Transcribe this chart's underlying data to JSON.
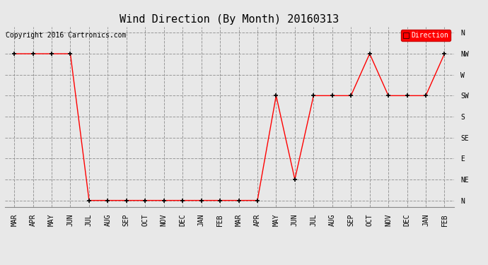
{
  "title": "Wind Direction (By Month) 20160313",
  "copyright": "Copyright 2016 Cartronics.com",
  "legend_label": "Direction",
  "legend_color": "#ff0000",
  "legend_text_color": "#ffffff",
  "x_labels": [
    "MAR",
    "APR",
    "MAY",
    "JUN",
    "JUL",
    "AUG",
    "SEP",
    "OCT",
    "NOV",
    "DEC",
    "JAN",
    "FEB",
    "MAR",
    "APR",
    "MAY",
    "JUN",
    "JUL",
    "AUG",
    "SEP",
    "OCT",
    "NOV",
    "DEC",
    "JAN",
    "FEB"
  ],
  "y_labels": [
    "N",
    "NE",
    "E",
    "SE",
    "S",
    "SW",
    "W",
    "NW",
    "N"
  ],
  "y_values": [
    0,
    1,
    2,
    3,
    4,
    5,
    6,
    7,
    8
  ],
  "data_values": [
    7,
    7,
    7,
    7,
    0,
    0,
    0,
    0,
    0,
    0,
    0,
    0,
    0,
    0,
    5,
    1,
    5,
    5,
    5,
    7,
    5,
    5,
    5,
    7
  ],
  "line_color": "#ff0000",
  "marker_color": "#000000",
  "marker_size": 5,
  "background_color": "#e8e8e8",
  "plot_background": "#e8e8e8",
  "grid_color": "#999999",
  "grid_style": "--",
  "title_fontsize": 11,
  "copyright_fontsize": 7,
  "axis_fontsize": 7
}
